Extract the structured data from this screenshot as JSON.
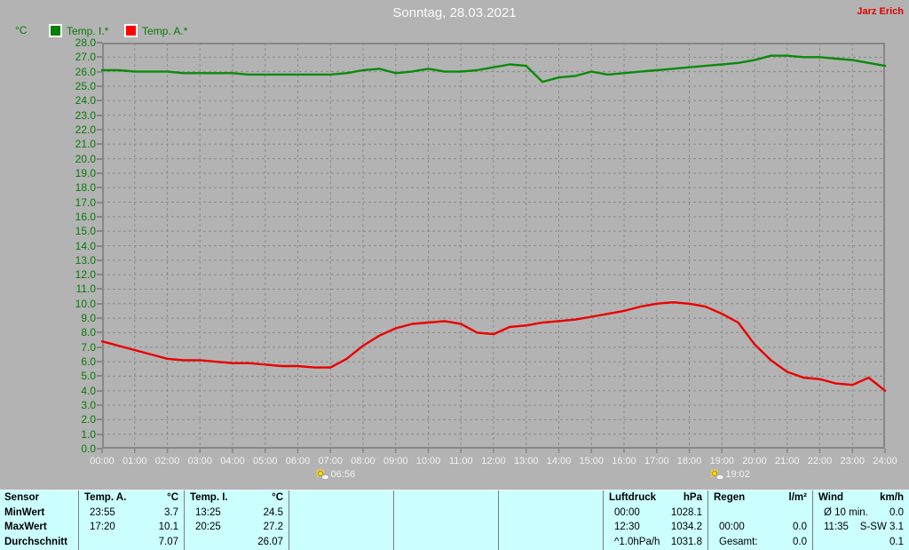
{
  "header": {
    "title": "Sonntag, 28.03.2021",
    "watermark": "Jarz Erich"
  },
  "legend": {
    "unit_label": "°C",
    "series": [
      {
        "label": "Temp. I.*",
        "color": "#008000"
      },
      {
        "label": "Temp. A.*",
        "color": "#ff0000"
      }
    ]
  },
  "chart_data": {
    "type": "line",
    "title": "Sonntag, 28.03.2021",
    "ylabel": "°C",
    "ylim": [
      0.0,
      28.0
    ],
    "ytick_step": 1.0,
    "xlim_hours": [
      0,
      24
    ],
    "x_step_hours": 0.5,
    "grid": true,
    "legend_position": "top-left",
    "xtick_labels": [
      "00:00",
      "01:00",
      "02:00",
      "03:00",
      "04:00",
      "05:00",
      "06:00",
      "07:00",
      "08:00",
      "09:00",
      "10:00",
      "11:00",
      "12:00",
      "13:00",
      "14:00",
      "15:00",
      "16:00",
      "17:00",
      "18:00",
      "19:00",
      "20:00",
      "21:00",
      "22:00",
      "23:00",
      "24:00"
    ],
    "series": [
      {
        "name": "Temp. I.*",
        "color": "#0b8a0b",
        "values": [
          26.1,
          26.1,
          26.0,
          26.0,
          26.0,
          25.9,
          25.9,
          25.9,
          25.9,
          25.8,
          25.8,
          25.8,
          25.8,
          25.8,
          25.8,
          25.9,
          26.1,
          26.2,
          25.9,
          26.0,
          26.2,
          26.0,
          26.0,
          26.1,
          26.3,
          26.5,
          26.4,
          25.3,
          25.6,
          25.7,
          26.0,
          25.8,
          25.9,
          26.0,
          26.1,
          26.2,
          26.3,
          26.4,
          26.5,
          26.6,
          26.8,
          27.1,
          27.1,
          27.0,
          27.0,
          26.9,
          26.8,
          26.6,
          26.4
        ]
      },
      {
        "name": "Temp. A.*",
        "color": "#ea0000",
        "values": [
          7.4,
          7.1,
          6.8,
          6.5,
          6.2,
          6.1,
          6.1,
          6.0,
          5.9,
          5.9,
          5.8,
          5.7,
          5.7,
          5.6,
          5.6,
          6.2,
          7.1,
          7.8,
          8.3,
          8.6,
          8.7,
          8.8,
          8.6,
          8.0,
          7.9,
          8.4,
          8.5,
          8.7,
          8.8,
          8.9,
          9.1,
          9.3,
          9.5,
          9.8,
          10.0,
          10.1,
          10.0,
          9.8,
          9.3,
          8.7,
          7.2,
          6.1,
          5.3,
          4.9,
          4.8,
          4.5,
          4.4,
          4.9,
          4.0
        ]
      }
    ],
    "sun_markers": [
      {
        "name": "sunrise",
        "time": "06:56",
        "hour": 6.93
      },
      {
        "name": "sunset",
        "time": "19:02",
        "hour": 19.03
      }
    ]
  },
  "table": {
    "row_labels": [
      "Sensor",
      "MinWert",
      "MaxWert",
      "Durchschnitt"
    ],
    "sections": [
      {
        "name": "Temp. A.",
        "unit": "°C",
        "rows": [
          [
            "23:55",
            "3.7"
          ],
          [
            "17:20",
            "10.1"
          ],
          [
            "",
            "7.07"
          ]
        ]
      },
      {
        "name": "Temp. I.",
        "unit": "°C",
        "rows": [
          [
            "13:25",
            "24.5"
          ],
          [
            "20:25",
            "27.2"
          ],
          [
            "",
            "26.07"
          ]
        ]
      },
      {
        "name": "",
        "unit": "",
        "rows": [
          [
            "",
            ""
          ],
          [
            "",
            ""
          ],
          [
            "",
            ""
          ]
        ]
      },
      {
        "name": "",
        "unit": "",
        "rows": [
          [
            "",
            ""
          ],
          [
            "",
            ""
          ],
          [
            "",
            ""
          ]
        ]
      },
      {
        "name": "",
        "unit": "",
        "rows": [
          [
            "",
            ""
          ],
          [
            "",
            ""
          ],
          [
            "",
            ""
          ]
        ]
      },
      {
        "name": "Luftdruck",
        "unit": "hPa",
        "rows": [
          [
            "00:00",
            "1028.1"
          ],
          [
            "12:30",
            "1034.2"
          ],
          [
            "^1.0hPa/h",
            "1031.8"
          ]
        ]
      },
      {
        "name": "Regen",
        "unit": "l/m²",
        "rows": [
          [
            "",
            ""
          ],
          [
            "00:00",
            "0.0"
          ],
          [
            "Gesamt:",
            "0.0"
          ]
        ]
      },
      {
        "name": "Wind",
        "unit": "km/h",
        "rows": [
          [
            "Ø 10 min.",
            "0.0"
          ],
          [
            "11:35",
            "S-SW 3.1"
          ],
          [
            "",
            "0.1"
          ]
        ]
      }
    ]
  },
  "colors": {
    "background": "#b3b3b3",
    "grid": "#8c8c8c",
    "frame": "#878787",
    "axis_text_y": "#067a06",
    "axis_text_x": "#f2f2f2",
    "title_text": "#fbfbfb",
    "watermark_text": "#e00000",
    "table_background": "#ccffff",
    "sun_icon": "#ffd800"
  }
}
